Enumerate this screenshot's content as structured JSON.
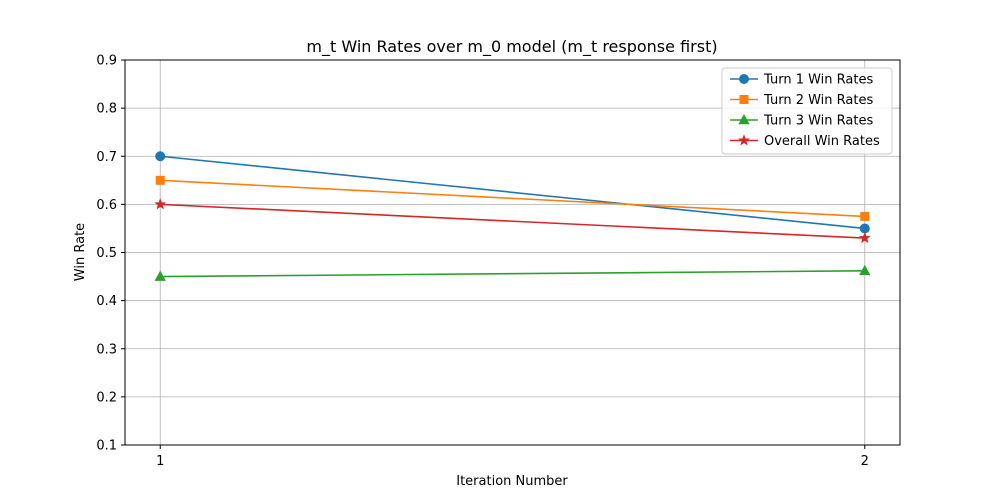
{
  "chart_data": {
    "type": "line",
    "title": "m_t Win Rates over m_0 model (m_t response first)",
    "xlabel": "Iteration Number",
    "ylabel": "Win Rate",
    "x": [
      1,
      2
    ],
    "x_ticks": [
      "1",
      "2"
    ],
    "ylim": [
      0.1,
      0.9
    ],
    "y_ticks": [
      "0.1",
      "0.2",
      "0.3",
      "0.4",
      "0.5",
      "0.6",
      "0.7",
      "0.8",
      "0.9"
    ],
    "grid": true,
    "legend_position": "top-right",
    "series": [
      {
        "name": "Turn 1 Win Rates",
        "values": [
          0.7,
          0.55
        ],
        "color": "#1f77b4",
        "marker": "circle"
      },
      {
        "name": "Turn 2 Win Rates",
        "values": [
          0.65,
          0.575
        ],
        "color": "#ff7f0e",
        "marker": "square"
      },
      {
        "name": "Turn 3 Win Rates",
        "values": [
          0.45,
          0.462
        ],
        "color": "#2ca02c",
        "marker": "triangle"
      },
      {
        "name": "Overall Win Rates",
        "values": [
          0.6,
          0.53
        ],
        "color": "#d62728",
        "marker": "star"
      }
    ]
  }
}
